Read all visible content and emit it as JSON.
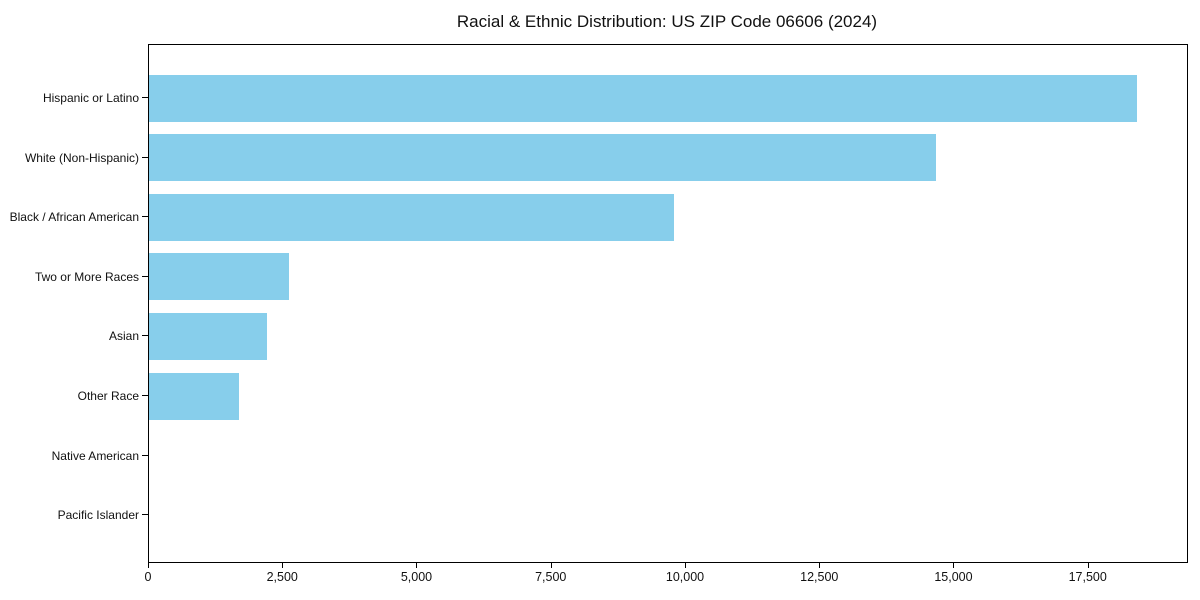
{
  "chart_data": {
    "type": "bar",
    "orientation": "horizontal",
    "title": "Racial & Ethnic Distribution: US ZIP Code 06606 (2024)",
    "categories": [
      "Hispanic or Latino",
      "White (Non-Hispanic)",
      "Black / African American",
      "Two or More Races",
      "Asian",
      "Other Race",
      "Native American",
      "Pacific Islander"
    ],
    "values": [
      18400,
      14650,
      9780,
      2610,
      2200,
      1680,
      0,
      0
    ],
    "xlabel": "",
    "ylabel": "",
    "xlim": [
      0,
      19330
    ],
    "xticks": [
      0,
      2500,
      5000,
      7500,
      10000,
      12500,
      15000,
      17500
    ],
    "xtick_labels": [
      "0",
      "2,500",
      "5,000",
      "7,500",
      "10,000",
      "12,500",
      "15,000",
      "17,500"
    ],
    "bar_color": "#87CEEB",
    "grid": false,
    "legend_position": "none"
  }
}
